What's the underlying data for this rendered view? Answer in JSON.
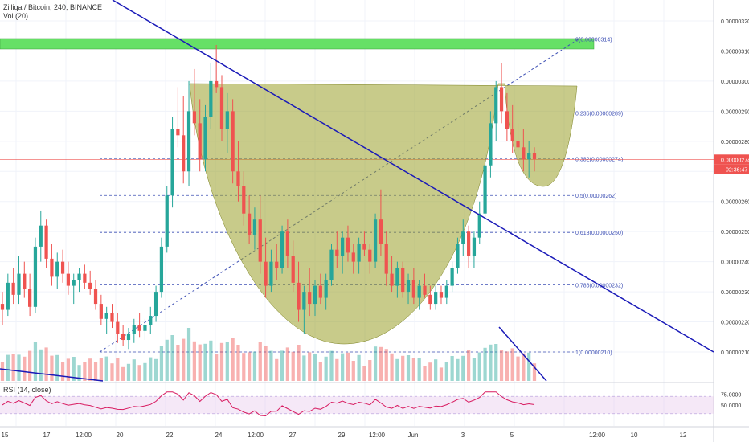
{
  "header": {
    "title": "Zilliqa / Bitcoin, 240, BINANCE",
    "volume": "Vol (20)"
  },
  "rsi_panel": {
    "label": "RSI (14, close)",
    "levels": [
      "75.0000",
      "50.0000"
    ]
  },
  "price_axis": {
    "labels": [
      "0.00000320",
      "0.00000310",
      "0.00000300",
      "0.00000290",
      "0.00000280",
      "0.00000260",
      "0.00000250",
      "0.00000240",
      "0.00000230",
      "0.00000220",
      "0.00000210"
    ],
    "current_price": "0.00000274",
    "countdown": "02:36:47",
    "current_price_color": "#ef5350"
  },
  "time_axis": {
    "labels": [
      "15",
      "17",
      "12:00",
      "20",
      "22",
      "24",
      "12:00",
      "27",
      "29",
      "12:00",
      "Jun",
      "3",
      "5",
      "12:00",
      "10",
      "12"
    ]
  },
  "fibonacci": {
    "levels": [
      {
        "ratio": 0,
        "label": "0(0.00000314)"
      },
      {
        "ratio": 0.236,
        "label": "0.236(0.00000289)"
      },
      {
        "ratio": 0.382,
        "label": "0.382(0.00000274)"
      },
      {
        "ratio": 0.5,
        "label": "0.5(0.00000262)"
      },
      {
        "ratio": 0.618,
        "label": "0.618(0.00000250)"
      },
      {
        "ratio": 0.786,
        "label": "0.786(0.00000232)"
      },
      {
        "ratio": 1,
        "label": "1(0.00000210)"
      }
    ],
    "color": "#3f51b5"
  },
  "colors": {
    "up": "#26a69a",
    "down": "#ef5350",
    "trendline": "#1a1ab8",
    "cup_fill": "#9aa02a",
    "resistance_zone": "#66e066",
    "grid": "#f0f3fa"
  },
  "chart_data": {
    "type": "candlestick",
    "symbol": "ZILBTC",
    "interval": "240",
    "y_unit": "BTC",
    "candles": [
      [
        226,
        230,
        219,
        224
      ],
      [
        224,
        236,
        222,
        233
      ],
      [
        233,
        238,
        226,
        229
      ],
      [
        229,
        242,
        226,
        236
      ],
      [
        236,
        240,
        228,
        231
      ],
      [
        231,
        236,
        222,
        225
      ],
      [
        225,
        248,
        223,
        245
      ],
      [
        245,
        257,
        240,
        252
      ],
      [
        252,
        254,
        238,
        241
      ],
      [
        241,
        246,
        232,
        235
      ],
      [
        235,
        243,
        231,
        240
      ],
      [
        240,
        244,
        233,
        236
      ],
      [
        236,
        240,
        229,
        232
      ],
      [
        232,
        236,
        226,
        234
      ],
      [
        234,
        238,
        230,
        236
      ],
      [
        236,
        239,
        231,
        233
      ],
      [
        233,
        237,
        229,
        231
      ],
      [
        231,
        234,
        224,
        226
      ],
      [
        226,
        229,
        219,
        221
      ],
      [
        221,
        225,
        216,
        223
      ],
      [
        223,
        226,
        218,
        220
      ],
      [
        220,
        223,
        213,
        216
      ],
      [
        216,
        219,
        212,
        214
      ],
      [
        214,
        218,
        211,
        216
      ],
      [
        216,
        221,
        213,
        219
      ],
      [
        219,
        223,
        215,
        217
      ],
      [
        217,
        221,
        214,
        219
      ],
      [
        219,
        225,
        216,
        222
      ],
      [
        222,
        232,
        220,
        230
      ],
      [
        230,
        248,
        228,
        245
      ],
      [
        245,
        265,
        243,
        262
      ],
      [
        262,
        288,
        258,
        284
      ],
      [
        284,
        298,
        278,
        282
      ],
      [
        282,
        295,
        266,
        270
      ],
      [
        270,
        300,
        265,
        290
      ],
      [
        290,
        304,
        282,
        286
      ],
      [
        286,
        294,
        270,
        274
      ],
      [
        274,
        292,
        270,
        288
      ],
      [
        288,
        306,
        284,
        300
      ],
      [
        300,
        312,
        296,
        298
      ],
      [
        298,
        302,
        280,
        284
      ],
      [
        284,
        296,
        276,
        290
      ],
      [
        290,
        294,
        266,
        270
      ],
      [
        270,
        280,
        260,
        265
      ],
      [
        265,
        270,
        252,
        256
      ],
      [
        256,
        262,
        246,
        249
      ],
      [
        249,
        258,
        244,
        254
      ],
      [
        254,
        262,
        236,
        240
      ],
      [
        240,
        248,
        228,
        232
      ],
      [
        232,
        244,
        230,
        240
      ],
      [
        240,
        246,
        234,
        238
      ],
      [
        238,
        252,
        236,
        250
      ],
      [
        250,
        254,
        238,
        242
      ],
      [
        242,
        247,
        230,
        233
      ],
      [
        233,
        240,
        220,
        224
      ],
      [
        224,
        232,
        216,
        230
      ],
      [
        230,
        238,
        222,
        226
      ],
      [
        226,
        234,
        222,
        232
      ],
      [
        232,
        236,
        226,
        228
      ],
      [
        228,
        236,
        224,
        234
      ],
      [
        234,
        246,
        232,
        244
      ],
      [
        244,
        250,
        238,
        242
      ],
      [
        242,
        250,
        236,
        248
      ],
      [
        248,
        252,
        240,
        243
      ],
      [
        243,
        246,
        236,
        240
      ],
      [
        240,
        248,
        236,
        246
      ],
      [
        246,
        250,
        242,
        244
      ],
      [
        244,
        246,
        236,
        240
      ],
      [
        240,
        256,
        238,
        254
      ],
      [
        254,
        264,
        242,
        246
      ],
      [
        246,
        250,
        232,
        236
      ],
      [
        236,
        242,
        230,
        232
      ],
      [
        232,
        240,
        228,
        238
      ],
      [
        238,
        240,
        228,
        230
      ],
      [
        230,
        236,
        226,
        234
      ],
      [
        234,
        238,
        226,
        228
      ],
      [
        228,
        234,
        224,
        232
      ],
      [
        232,
        236,
        228,
        229
      ],
      [
        229,
        232,
        224,
        226
      ],
      [
        226,
        232,
        224,
        230
      ],
      [
        230,
        232,
        226,
        228
      ],
      [
        228,
        234,
        226,
        232
      ],
      [
        232,
        240,
        230,
        238
      ],
      [
        238,
        248,
        236,
        246
      ],
      [
        246,
        254,
        242,
        250
      ],
      [
        250,
        252,
        238,
        242
      ],
      [
        242,
        250,
        238,
        248
      ],
      [
        248,
        260,
        246,
        256
      ],
      [
        256,
        276,
        254,
        272
      ],
      [
        272,
        290,
        268,
        286
      ],
      [
        286,
        300,
        280,
        298
      ],
      [
        298,
        306,
        286,
        290
      ],
      [
        290,
        296,
        280,
        284
      ],
      [
        284,
        292,
        276,
        280
      ],
      [
        280,
        286,
        272,
        278
      ],
      [
        278,
        284,
        270,
        274
      ],
      [
        274,
        280,
        268,
        276
      ],
      [
        276,
        278,
        270,
        274
      ]
    ],
    "volume_scale": "relative",
    "rsi_levels": [
      75,
      50
    ],
    "annotations": {
      "cup_and_handle": true,
      "descending_trendline": true,
      "fib_retracement": [
        0,
        0.236,
        0.382,
        0.5,
        0.618,
        0.786,
        1
      ]
    },
    "ylim": [
      205,
      325
    ]
  }
}
